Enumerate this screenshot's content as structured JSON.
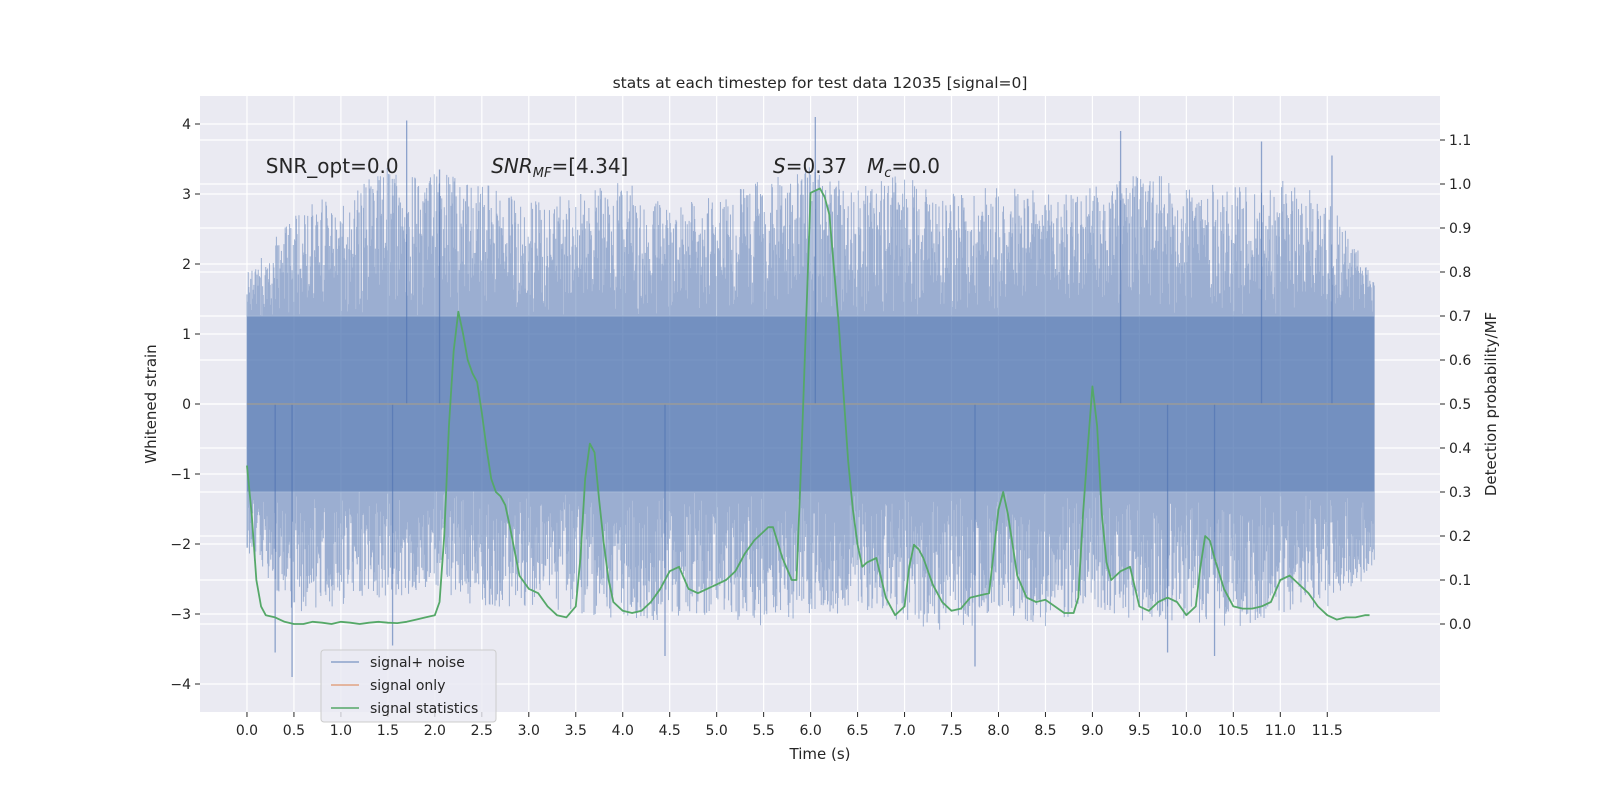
{
  "chart_data": {
    "type": "line",
    "title": "stats at each timestep for test data 12035 [signal=0]",
    "xlabel": "Time (s)",
    "ylabel": "Whitened strain",
    "ylabel_right": "Detection probability/MF",
    "xlim": [
      -0.5,
      12.7
    ],
    "ylim": [
      -4.4,
      4.4
    ],
    "ylim_right": [
      -0.2,
      1.2
    ],
    "x_ticks": [
      0.0,
      0.5,
      1.0,
      1.5,
      2.0,
      2.5,
      3.0,
      3.5,
      4.0,
      4.5,
      5.0,
      5.5,
      6.0,
      6.5,
      7.0,
      7.5,
      8.0,
      8.5,
      9.0,
      9.5,
      10.0,
      10.5,
      11.0,
      11.5
    ],
    "x_tick_labels": [
      "0.0",
      "0.5",
      "1.0",
      "1.5",
      "2.0",
      "2.5",
      "3.0",
      "3.5",
      "4.0",
      "4.5",
      "5.0",
      "5.5",
      "6.0",
      "6.5",
      "7.0",
      "7.5",
      "8.0",
      "8.5",
      "9.0",
      "9.5",
      "10.0",
      "10.5",
      "11.0",
      "11.5"
    ],
    "y_ticks": [
      -4,
      -3,
      -2,
      -1,
      0,
      1,
      2,
      3,
      4
    ],
    "y_tick_labels": [
      "−4",
      "−3",
      "−2",
      "−1",
      "0",
      "1",
      "2",
      "3",
      "4"
    ],
    "y_ticks_right": [
      0.0,
      0.1,
      0.2,
      0.3,
      0.4,
      0.5,
      0.6,
      0.7,
      0.8,
      0.9,
      1.0,
      1.1
    ],
    "y_tick_labels_right": [
      "0.0",
      "0.1",
      "0.2",
      "0.3",
      "0.4",
      "0.5",
      "0.6",
      "0.7",
      "0.8",
      "0.9",
      "1.0",
      "1.1"
    ],
    "grid": true,
    "legend_position": "lower-left",
    "annotations": [
      {
        "text": "SNR_opt=0.0",
        "x": 0.2,
        "y": 3.3
      },
      {
        "text": "SNR_MF=[4.34]",
        "x": 2.6,
        "y": 3.3
      },
      {
        "text": "S=0.37",
        "x": 5.6,
        "y": 3.3
      },
      {
        "text": "M_c=0.0",
        "x": 6.6,
        "y": 3.3
      }
    ],
    "series": [
      {
        "name": "signal+ noise",
        "color": "#4c72b0",
        "axis": "left",
        "x_range": [
          0.0,
          12.0
        ],
        "envelope_bands": [
          {
            "x": 0.0,
            "max": 1.9,
            "min": -2.1
          },
          {
            "x": 0.5,
            "max": 2.7,
            "min": -3.0
          },
          {
            "x": 1.0,
            "max": 3.1,
            "min": -2.9
          },
          {
            "x": 1.5,
            "max": 3.4,
            "min": -2.8
          },
          {
            "x": 2.0,
            "max": 3.3,
            "min": -2.6
          },
          {
            "x": 2.5,
            "max": 3.2,
            "min": -3.0
          },
          {
            "x": 3.0,
            "max": 2.9,
            "min": -2.9
          },
          {
            "x": 3.5,
            "max": 3.0,
            "min": -3.0
          },
          {
            "x": 4.0,
            "max": 3.2,
            "min": -3.1
          },
          {
            "x": 4.5,
            "max": 2.8,
            "min": -3.1
          },
          {
            "x": 5.0,
            "max": 3.0,
            "min": -3.0
          },
          {
            "x": 5.5,
            "max": 3.2,
            "min": -3.2
          },
          {
            "x": 6.0,
            "max": 3.4,
            "min": -3.0
          },
          {
            "x": 6.5,
            "max": 3.1,
            "min": -3.0
          },
          {
            "x": 7.0,
            "max": 3.3,
            "min": -3.1
          },
          {
            "x": 7.5,
            "max": 3.0,
            "min": -3.3
          },
          {
            "x": 8.0,
            "max": 3.2,
            "min": -3.0
          },
          {
            "x": 8.5,
            "max": 3.0,
            "min": -3.2
          },
          {
            "x": 9.0,
            "max": 3.1,
            "min": -2.9
          },
          {
            "x": 9.5,
            "max": 3.3,
            "min": -3.1
          },
          {
            "x": 10.0,
            "max": 3.2,
            "min": -3.1
          },
          {
            "x": 10.5,
            "max": 3.1,
            "min": -3.2
          },
          {
            "x": 11.0,
            "max": 3.2,
            "min": -3.0
          },
          {
            "x": 11.5,
            "max": 3.0,
            "min": -2.9
          },
          {
            "x": 12.0,
            "max": 1.8,
            "min": -2.4
          }
        ],
        "spikes": [
          {
            "x": 1.7,
            "y": 4.05
          },
          {
            "x": 6.05,
            "y": 4.1
          },
          {
            "x": 9.3,
            "y": 3.9
          },
          {
            "x": 2.05,
            "y": 3.35
          },
          {
            "x": 10.8,
            "y": 3.75
          },
          {
            "x": 0.48,
            "y": -3.9
          },
          {
            "x": 0.3,
            "y": -3.55
          },
          {
            "x": 4.45,
            "y": -3.6
          },
          {
            "x": 7.75,
            "y": -3.75
          },
          {
            "x": 10.3,
            "y": -3.6
          },
          {
            "x": 9.8,
            "y": -3.55
          },
          {
            "x": 1.55,
            "y": -3.45
          },
          {
            "x": 11.55,
            "y": 3.55
          }
        ]
      },
      {
        "name": "signal only",
        "color": "#dd8452",
        "axis": "left",
        "x": [
          0.0,
          12.0
        ],
        "y": [
          0.0,
          0.0
        ]
      },
      {
        "name": "signal statistics",
        "color": "#55a868",
        "axis": "right",
        "x": [
          0.0,
          0.05,
          0.1,
          0.15,
          0.2,
          0.3,
          0.4,
          0.5,
          0.6,
          0.7,
          0.8,
          0.9,
          1.0,
          1.1,
          1.2,
          1.3,
          1.4,
          1.5,
          1.6,
          1.7,
          1.8,
          1.9,
          2.0,
          2.05,
          2.1,
          2.15,
          2.2,
          2.25,
          2.3,
          2.35,
          2.4,
          2.45,
          2.5,
          2.55,
          2.6,
          2.65,
          2.7,
          2.75,
          2.8,
          2.9,
          3.0,
          3.1,
          3.2,
          3.3,
          3.4,
          3.5,
          3.55,
          3.6,
          3.65,
          3.7,
          3.75,
          3.8,
          3.85,
          3.9,
          4.0,
          4.1,
          4.2,
          4.3,
          4.4,
          4.5,
          4.6,
          4.7,
          4.8,
          4.9,
          5.0,
          5.1,
          5.2,
          5.3,
          5.4,
          5.5,
          5.55,
          5.6,
          5.7,
          5.8,
          5.85,
          5.9,
          6.0,
          6.1,
          6.15,
          6.2,
          6.3,
          6.4,
          6.45,
          6.5,
          6.55,
          6.6,
          6.7,
          6.8,
          6.9,
          7.0,
          7.05,
          7.1,
          7.15,
          7.2,
          7.3,
          7.4,
          7.5,
          7.6,
          7.7,
          7.8,
          7.9,
          8.0,
          8.05,
          8.1,
          8.2,
          8.3,
          8.4,
          8.5,
          8.6,
          8.7,
          8.8,
          8.85,
          8.9,
          8.95,
          9.0,
          9.05,
          9.1,
          9.15,
          9.2,
          9.3,
          9.4,
          9.5,
          9.6,
          9.7,
          9.8,
          9.9,
          10.0,
          10.1,
          10.15,
          10.2,
          10.25,
          10.3,
          10.4,
          10.5,
          10.6,
          10.7,
          10.8,
          10.9,
          11.0,
          11.1,
          11.2,
          11.3,
          11.4,
          11.5,
          11.6,
          11.7,
          11.8,
          11.9,
          11.95
        ],
        "y": [
          0.36,
          0.25,
          0.1,
          0.04,
          0.02,
          0.015,
          0.005,
          0.0,
          0.0,
          0.005,
          0.003,
          0.0,
          0.005,
          0.003,
          0.0,
          0.003,
          0.005,
          0.003,
          0.002,
          0.005,
          0.01,
          0.015,
          0.02,
          0.05,
          0.2,
          0.45,
          0.62,
          0.71,
          0.66,
          0.6,
          0.57,
          0.55,
          0.48,
          0.4,
          0.33,
          0.3,
          0.29,
          0.27,
          0.22,
          0.11,
          0.08,
          0.07,
          0.04,
          0.02,
          0.015,
          0.04,
          0.15,
          0.33,
          0.41,
          0.39,
          0.28,
          0.18,
          0.1,
          0.05,
          0.03,
          0.025,
          0.03,
          0.05,
          0.08,
          0.12,
          0.13,
          0.08,
          0.07,
          0.08,
          0.09,
          0.1,
          0.12,
          0.16,
          0.19,
          0.21,
          0.22,
          0.22,
          0.15,
          0.1,
          0.1,
          0.37,
          0.98,
          0.99,
          0.97,
          0.93,
          0.68,
          0.37,
          0.26,
          0.18,
          0.13,
          0.14,
          0.15,
          0.06,
          0.02,
          0.04,
          0.13,
          0.18,
          0.17,
          0.15,
          0.09,
          0.05,
          0.03,
          0.035,
          0.06,
          0.065,
          0.07,
          0.26,
          0.3,
          0.25,
          0.11,
          0.06,
          0.05,
          0.055,
          0.04,
          0.025,
          0.025,
          0.06,
          0.25,
          0.4,
          0.54,
          0.45,
          0.25,
          0.14,
          0.1,
          0.12,
          0.13,
          0.04,
          0.03,
          0.05,
          0.06,
          0.05,
          0.02,
          0.04,
          0.13,
          0.2,
          0.19,
          0.15,
          0.08,
          0.04,
          0.035,
          0.035,
          0.04,
          0.05,
          0.1,
          0.11,
          0.09,
          0.07,
          0.04,
          0.02,
          0.01,
          0.015,
          0.015,
          0.02,
          0.02
        ]
      }
    ]
  },
  "legend": {
    "items": [
      {
        "label": "signal+ noise",
        "color": "#4c72b0"
      },
      {
        "label": "signal only",
        "color": "#dd8452"
      },
      {
        "label": "signal statistics",
        "color": "#55a868"
      }
    ]
  },
  "colors": {
    "plot_background": "#eaeaf2",
    "grid": "#ffffff",
    "text": "#262626"
  }
}
